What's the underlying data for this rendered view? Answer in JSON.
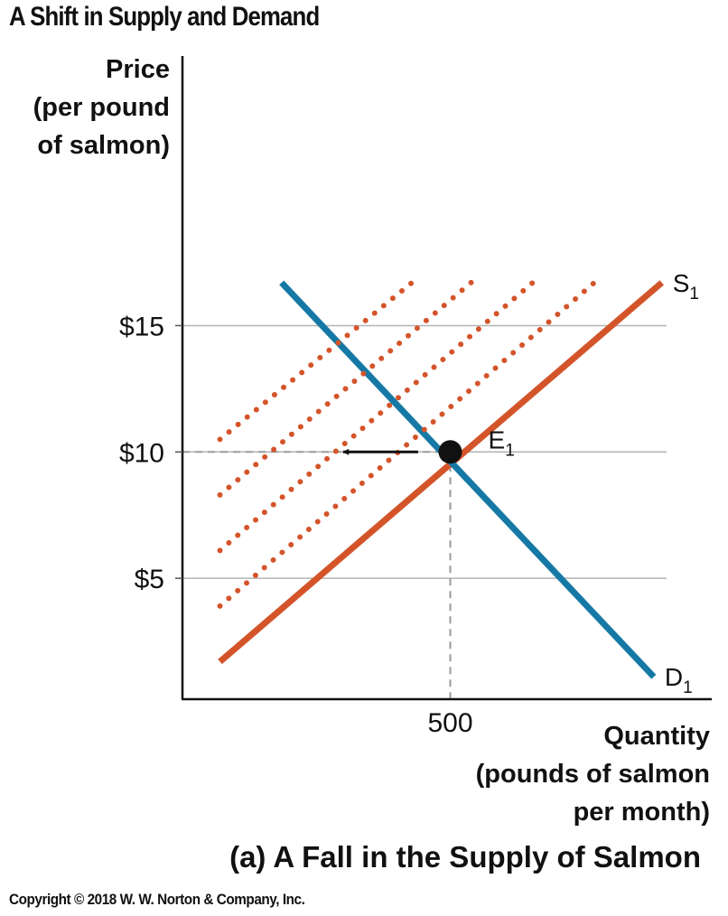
{
  "chart_data": {
    "type": "line",
    "title": "A Shift in Supply and Demand",
    "subtitle": "(a) A Fall in the Supply of Salmon",
    "ylabel": "Price\n(per pound\nof salmon)",
    "xlabel": "Quantity\n(pounds of salmon\nper month)",
    "xlim": [
      0,
      1000
    ],
    "ylim": [
      0,
      25
    ],
    "y_ticks": [
      {
        "value": 5,
        "label": "$5"
      },
      {
        "value": 10,
        "label": "$10"
      },
      {
        "value": 15,
        "label": "$15"
      }
    ],
    "x_ticks": [
      {
        "value": 500,
        "label": "500"
      }
    ],
    "grid": "horizontal at y ticks",
    "series": [
      {
        "name": "S",
        "sub": "1",
        "color": "#d4542a",
        "style": "solid",
        "x": [
          70,
          895
        ],
        "y": [
          1.7,
          16.7
        ]
      },
      {
        "name": "D",
        "sub": "1",
        "color": "#1679a5",
        "style": "solid",
        "x": [
          185,
          880
        ],
        "y": [
          16.7,
          1.1
        ]
      },
      {
        "color": "#d4542a",
        "style": "dotted",
        "x": [
          70,
          780
        ],
        "y": [
          3.9,
          16.9
        ]
      },
      {
        "color": "#d4542a",
        "style": "dotted",
        "x": [
          70,
          665
        ],
        "y": [
          6.1,
          16.9
        ]
      },
      {
        "color": "#d4542a",
        "style": "dotted",
        "x": [
          70,
          550
        ],
        "y": [
          8.3,
          16.9
        ]
      },
      {
        "color": "#d4542a",
        "style": "dotted",
        "x": [
          70,
          440
        ],
        "y": [
          10.5,
          16.9
        ]
      }
    ],
    "points": [
      {
        "name": "E",
        "sub": "1",
        "x": 500,
        "y": 10
      }
    ],
    "arrow": {
      "from": [
        440,
        10
      ],
      "to": [
        300,
        10
      ]
    }
  },
  "footer": {
    "copyright": "Copyright © 2018 W. W. Norton & Company, Inc."
  }
}
